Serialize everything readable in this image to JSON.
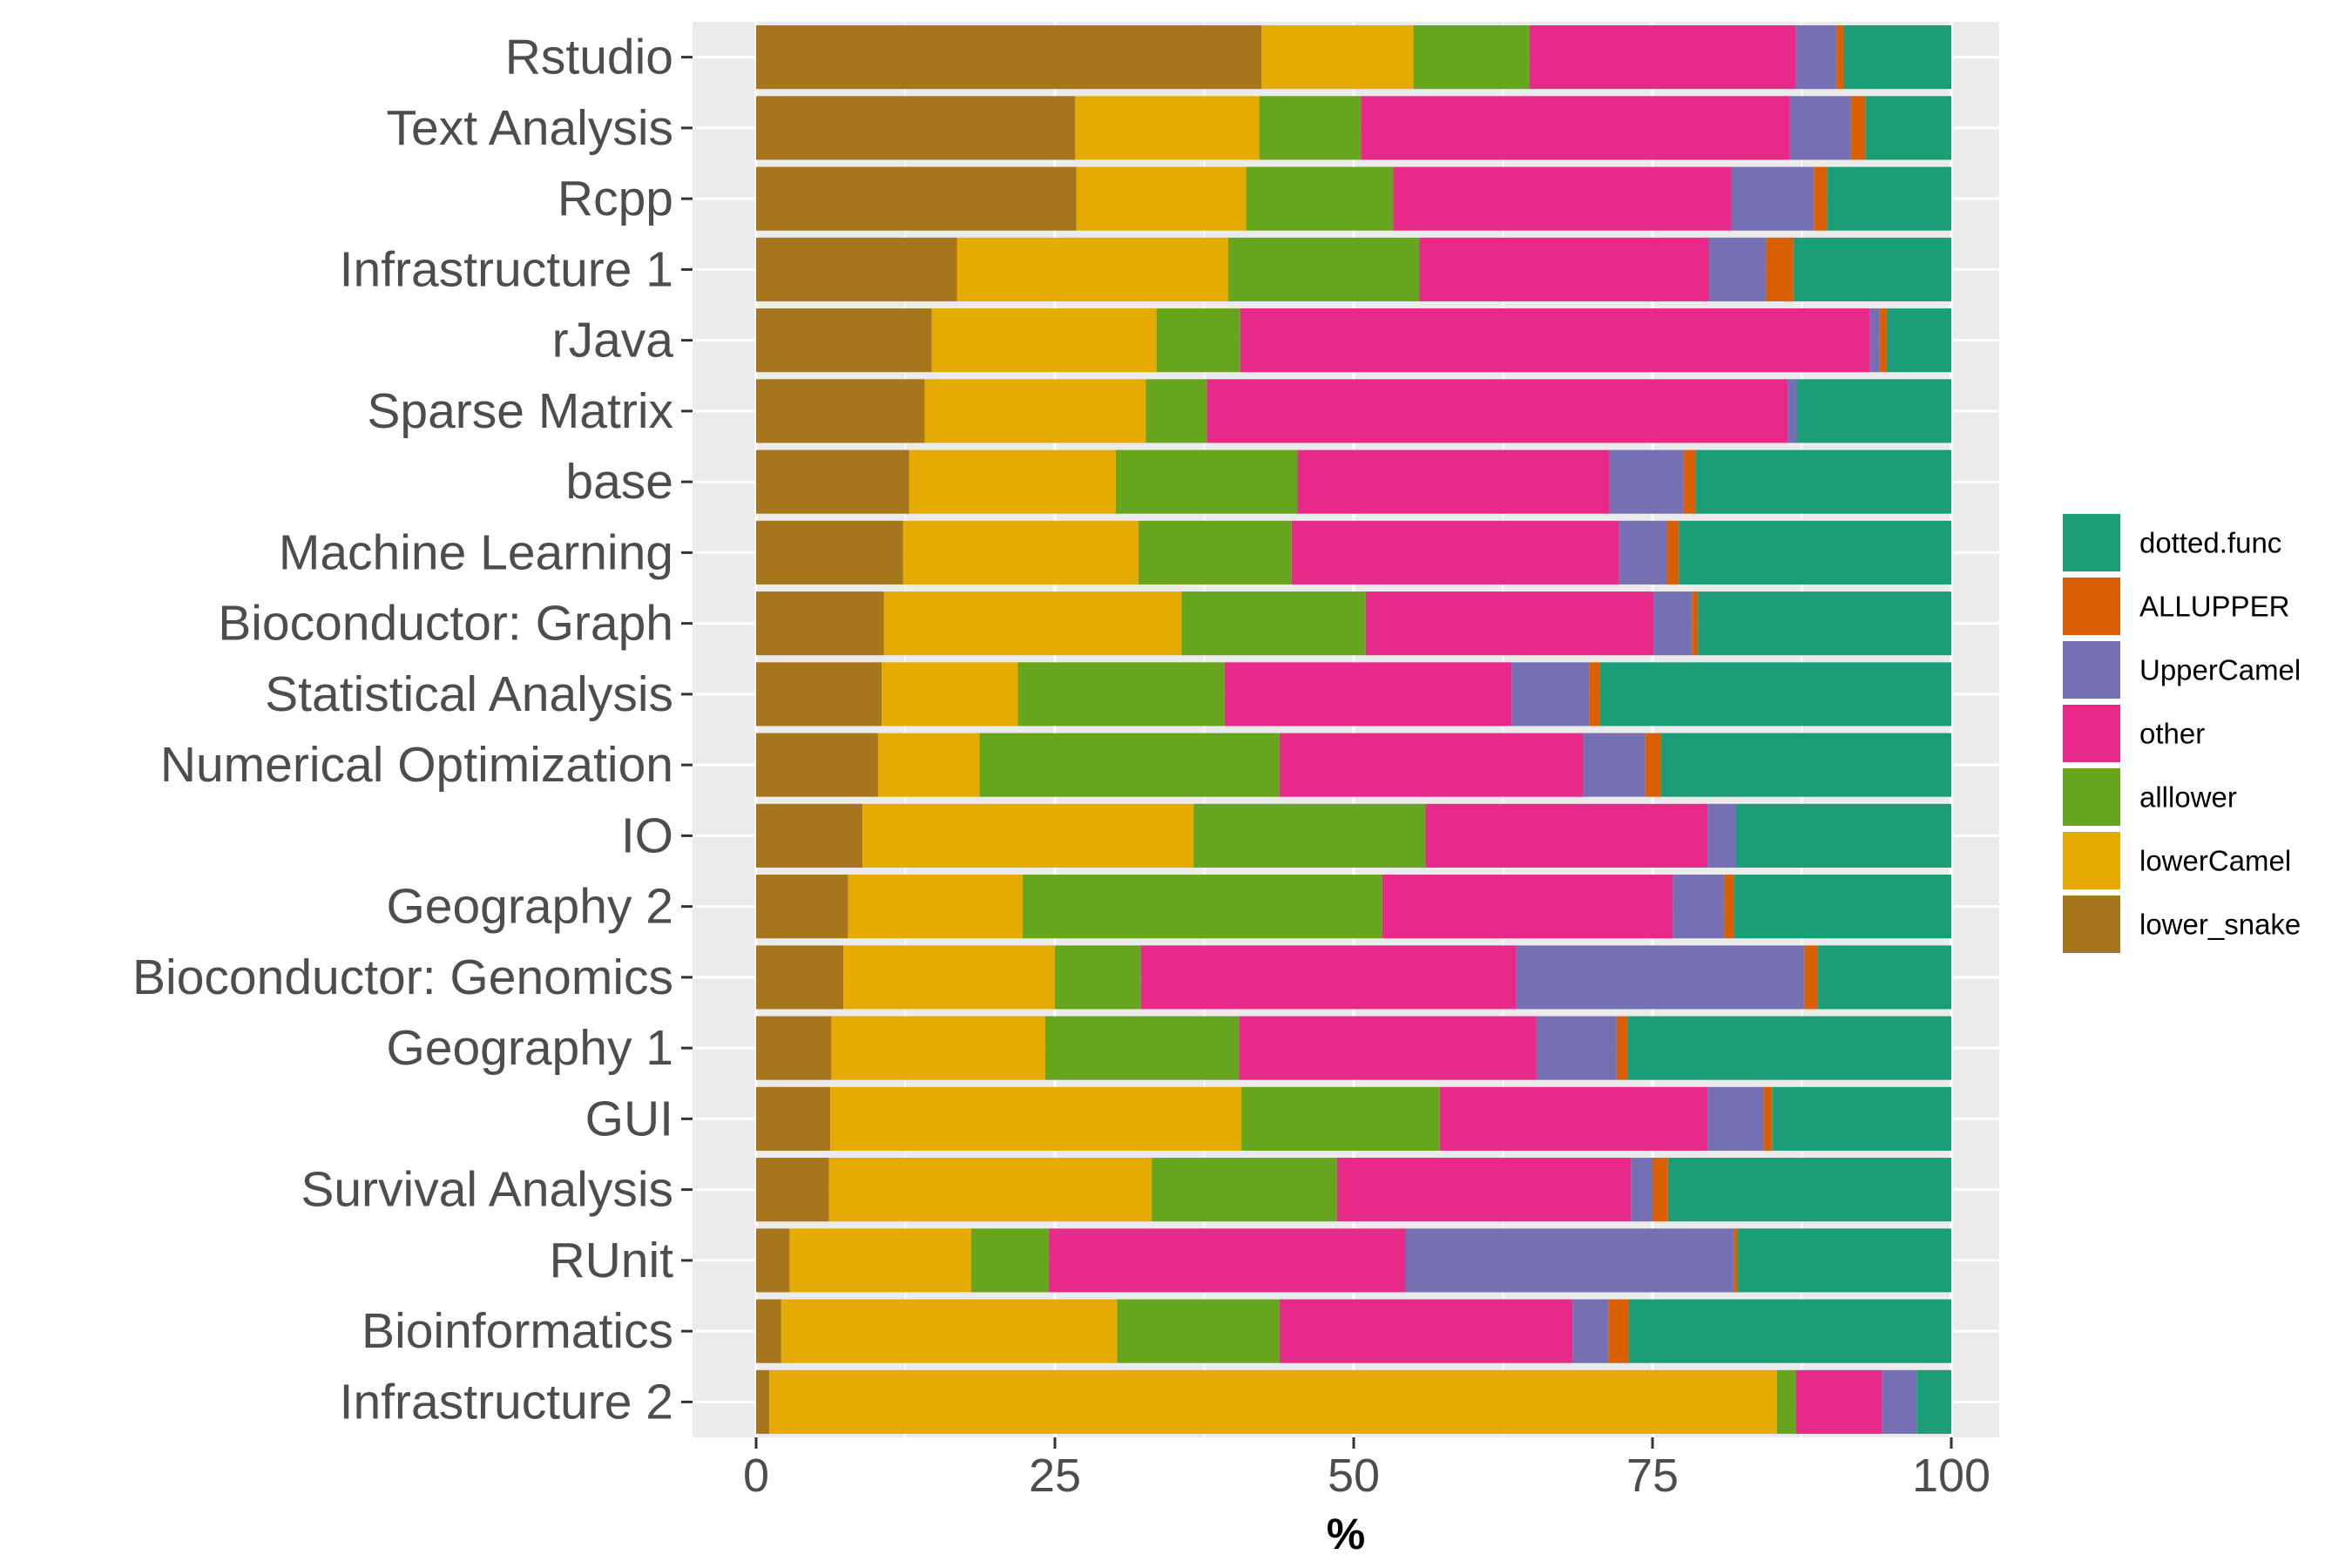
{
  "chart_data": {
    "type": "bar",
    "orientation": "horizontal",
    "stacked": true,
    "title": "",
    "xlabel": "%",
    "ylabel": "",
    "xlim": [
      0,
      100
    ],
    "x_ticks": [
      "0",
      "25",
      "50",
      "75",
      "100"
    ],
    "grid": true,
    "legend_position": "right",
    "categories": [
      "Rstudio",
      "Text Analysis",
      "Rcpp",
      "Infrastructure 1",
      "rJava",
      "Sparse Matrix",
      "base",
      "Machine Learning",
      "Bioconductor: Graph",
      "Statistical Analysis",
      "Numerical Optimization",
      "IO",
      "Geography 2",
      "Bioconductor: Genomics",
      "Geography 1",
      "GUI",
      "Survival Analysis",
      "RUnit",
      "Bioinformatics",
      "Infrastructure 2"
    ],
    "series": [
      {
        "name": "lower_snake",
        "color": "#A6761D",
        "values": [
          42.3,
          26.7,
          26.8,
          16.8,
          14.7,
          14.1,
          12.8,
          12.3,
          10.7,
          10.5,
          10.2,
          8.9,
          7.7,
          7.3,
          6.3,
          6.2,
          6.1,
          2.8,
          2.1,
          1.1
        ]
      },
      {
        "name": "lowerCamel",
        "color": "#E6AB02",
        "values": [
          12.7,
          15.4,
          14.2,
          22.7,
          18.8,
          18.5,
          17.3,
          19.7,
          24.9,
          11.4,
          8.5,
          27.7,
          14.6,
          17.7,
          17.9,
          34.4,
          27.0,
          15.2,
          28.1,
          84.3
        ]
      },
      {
        "name": "alllower",
        "color": "#66A61E",
        "values": [
          9.7,
          8.5,
          12.3,
          16.0,
          7.0,
          5.1,
          15.2,
          12.8,
          15.4,
          17.3,
          25.1,
          19.4,
          30.1,
          7.2,
          16.2,
          16.6,
          15.5,
          6.5,
          13.6,
          1.6
        ]
      },
      {
        "name": "other",
        "color": "#E7298A",
        "values": [
          22.3,
          35.9,
          28.3,
          24.2,
          52.7,
          48.6,
          26.1,
          27.4,
          24.1,
          24.0,
          25.4,
          23.6,
          24.3,
          31.4,
          24.9,
          22.4,
          24.6,
          29.8,
          24.5,
          7.2
        ]
      },
      {
        "name": "UpperCamel",
        "color": "#7570B3",
        "values": [
          3.4,
          5.1,
          6.9,
          4.8,
          0.8,
          0.8,
          6.2,
          4.0,
          3.2,
          6.5,
          5.2,
          2.4,
          4.3,
          24.1,
          6.7,
          4.7,
          1.8,
          27.5,
          3.0,
          2.9
        ]
      },
      {
        "name": "ALLUPPER",
        "color": "#D95F02",
        "values": [
          0.6,
          1.2,
          1.1,
          2.3,
          0.6,
          0.0,
          1.0,
          1.0,
          0.5,
          0.9,
          1.3,
          0.0,
          0.8,
          1.1,
          0.9,
          0.7,
          1.3,
          0.3,
          1.7,
          0.0
        ]
      },
      {
        "name": "dotted.func",
        "color": "#1B9E77",
        "values": [
          9.0,
          7.2,
          10.4,
          13.2,
          5.4,
          12.9,
          21.4,
          22.8,
          21.2,
          29.4,
          24.3,
          18.0,
          18.2,
          11.2,
          27.1,
          15.0,
          23.7,
          17.9,
          27.0,
          2.9
        ]
      }
    ],
    "legend_order": [
      "dotted.func",
      "ALLUPPER",
      "UpperCamel",
      "other",
      "alllower",
      "lowerCamel",
      "lower_snake"
    ]
  }
}
